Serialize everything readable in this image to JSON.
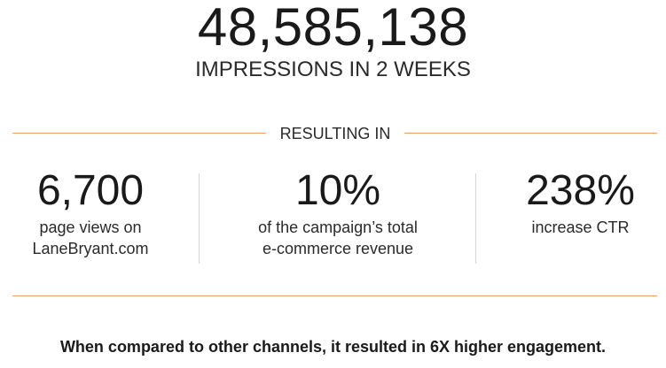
{
  "hero": {
    "number": "48,585,138",
    "caption": "IMPRESSIONS IN 2 WEEKS"
  },
  "section": {
    "label": "RESULTING IN"
  },
  "stats": [
    {
      "value": "6,700",
      "line1": "page views on",
      "line2": "LaneBryant.com"
    },
    {
      "value": "10%",
      "line1": "of the campaign’s total",
      "line2": "e-commerce revenue"
    },
    {
      "value": "238%",
      "line1": "increase CTR",
      "line2": ""
    }
  ],
  "footer": {
    "text": "When compared to other channels, it resulted in 6X higher engagement."
  },
  "colors": {
    "accent_line": "#f0a068",
    "separator": "#d6d6d6",
    "text": "#1a1a1a"
  }
}
